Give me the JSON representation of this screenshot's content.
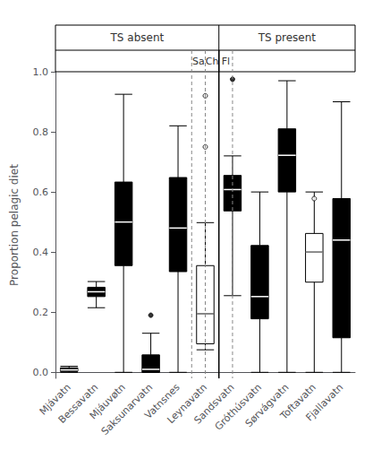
{
  "chart_data": {
    "type": "boxplot",
    "categories": [
      "Mjávatn",
      "Bessavatn",
      "Mjáuvøtn",
      "Saksunarvatn",
      "Vatnsnes",
      "Leynavatn",
      "Sandsvatn",
      "Gróthúsvatn",
      "Sørvágvatn",
      "Toftavatn",
      "Fjallavatn"
    ],
    "ylabel": "Proportion pelagic diet",
    "values": [
      [
        0.0,
        0.003,
        0.008,
        0.015,
        0.02
      ],
      [
        0.215,
        0.252,
        0.268,
        0.283,
        0.302
      ],
      [
        0.0,
        0.355,
        0.5,
        0.633,
        0.925
      ],
      [
        0.0,
        0.0,
        0.01,
        0.058,
        0.13
      ],
      [
        0.0,
        0.335,
        0.48,
        0.648,
        0.82
      ],
      [
        0.075,
        0.095,
        0.195,
        0.355,
        0.498
      ],
      [
        0.255,
        0.537,
        0.608,
        0.655,
        0.72
      ],
      [
        0.0,
        0.178,
        0.252,
        0.422,
        0.6
      ],
      [
        0.0,
        0.6,
        0.722,
        0.81,
        0.97
      ],
      [
        0.0,
        0.3,
        0.4,
        0.462,
        0.6
      ],
      [
        0.0,
        0.115,
        0.44,
        0.578,
        0.9
      ]
    ],
    "fliers": [
      [],
      [],
      [],
      [
        0.19
      ],
      [],
      [
        0.75,
        0.92
      ],
      [
        0.975
      ],
      [],
      [],
      [
        0.578
      ],
      []
    ],
    "colors": [
      "black",
      "black",
      "black",
      "black",
      "black",
      "white",
      "black",
      "black",
      "black",
      "white",
      "black"
    ],
    "ylim": [
      -0.02,
      1.0
    ],
    "yticks": [
      {
        "value": 0.0,
        "label": "0.0"
      },
      0.2,
      0.4,
      0.6,
      0.8,
      {
        "value": 1.0,
        "label": "1.0"
      }
    ],
    "grid": false,
    "groups": [
      {
        "label": "TS absent",
        "span": [
          1,
          6
        ]
      },
      {
        "label": "TS present",
        "span": [
          7,
          11
        ]
      }
    ],
    "annotations": [
      {
        "text": "Sa",
        "x": 5.5
      },
      {
        "text": "Ch",
        "x": 6.0
      },
      {
        "text": "Fl",
        "x": 6.5
      }
    ],
    "vlines": [
      {
        "x": 5.5,
        "line_style": "dashed"
      },
      {
        "x": 6.0,
        "line_style": "dashed"
      },
      {
        "x": 7.0,
        "line_style": "dashed"
      },
      {
        "x": 6.5,
        "line_style": "solid"
      }
    ]
  }
}
